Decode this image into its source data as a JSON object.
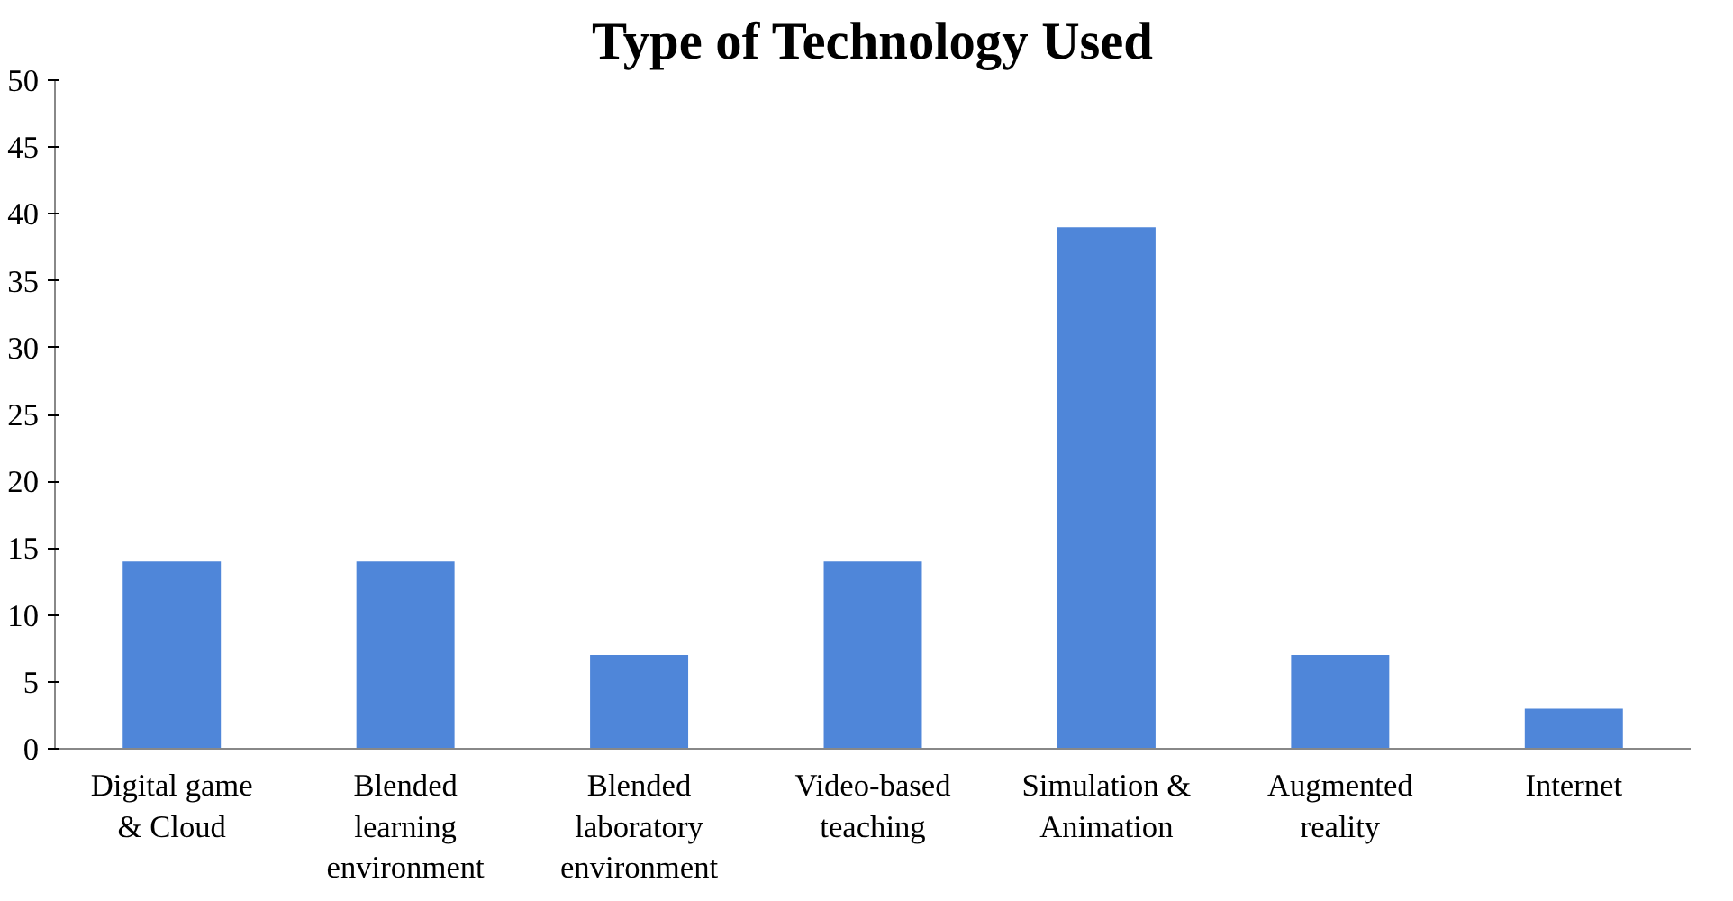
{
  "chart_data": {
    "type": "bar",
    "title": "Type of Technology Used",
    "categories": [
      "Digital game & Cloud",
      "Blended learning environment",
      "Blended laboratory environment",
      "Video-based teaching",
      "Simulation & Animation",
      "Augmented reality",
      "Internet"
    ],
    "values": [
      14,
      14,
      7,
      14,
      39,
      7,
      3
    ],
    "color": "#4f86d9",
    "ylim": [
      0,
      50
    ],
    "yticks": [
      0,
      5,
      10,
      15,
      20,
      25,
      30,
      35,
      40,
      45,
      50
    ],
    "grid": false
  }
}
